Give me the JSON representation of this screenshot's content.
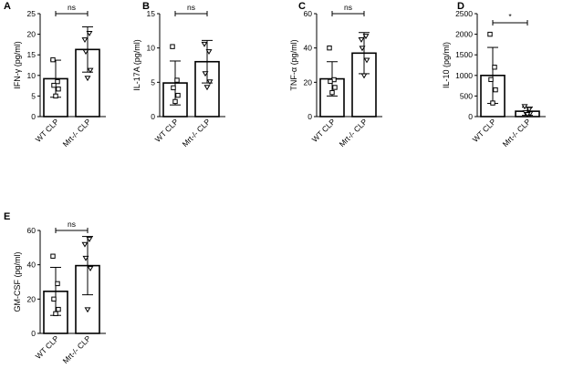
{
  "chart_data": [
    {
      "type": "bar",
      "panel": "A",
      "ylabel": "IFN-γ (pg/ml)",
      "ylim": [
        0,
        25
      ],
      "yticks": [
        0,
        5,
        10,
        15,
        20,
        25
      ],
      "categories": [
        "WT CLP",
        "Mrt-/- CLP"
      ],
      "values": [
        9.2,
        16.3
      ],
      "error": [
        4.5,
        5.5
      ],
      "points": [
        [
          13.8,
          8.5,
          7.6,
          6.7,
          5.0
        ],
        [
          18.7,
          20.3,
          15.8,
          11.3,
          9.4
        ]
      ],
      "significance": "ns"
    },
    {
      "type": "bar",
      "panel": "B",
      "ylabel": "IL-17A (pg/ml)",
      "ylim": [
        0,
        15
      ],
      "yticks": [
        0,
        5,
        10,
        15
      ],
      "categories": [
        "WT CLP",
        "Mrt-/- CLP"
      ],
      "values": [
        4.9,
        8.0
      ],
      "error": [
        3.2,
        3.1
      ],
      "points": [
        [
          10.2,
          5.3,
          4.2,
          3.1,
          2.2
        ],
        [
          10.6,
          9.5,
          6.3,
          5.1,
          4.3
        ]
      ],
      "significance": "ns"
    },
    {
      "type": "bar",
      "panel": "C",
      "ylabel": "TNF-α (pg/ml)",
      "ylim": [
        0,
        60
      ],
      "yticks": [
        0,
        20,
        40,
        60
      ],
      "categories": [
        "WT CLP",
        "Mrt-/- CLP"
      ],
      "values": [
        22.0,
        37.0
      ],
      "error": [
        10.0,
        12.0
      ],
      "points": [
        [
          40.0,
          21.5,
          20.5,
          17.0,
          14.0
        ],
        [
          45.0,
          47.0,
          40.0,
          33.0,
          24.0
        ]
      ],
      "significance": "ns"
    },
    {
      "type": "bar",
      "panel": "D",
      "ylabel": "IL-10 (pg/ml)",
      "ylim": [
        0,
        2500
      ],
      "yticks": [
        0,
        500,
        1000,
        1500,
        2000,
        2500
      ],
      "categories": [
        "WT CLP",
        "Mrt-/- CLP"
      ],
      "values": [
        1000,
        130
      ],
      "error": [
        680,
        100
      ],
      "points": [
        [
          2000,
          1200,
          900,
          650,
          330
        ],
        [
          250,
          180,
          100,
          80,
          60
        ]
      ],
      "significance": "*"
    },
    {
      "type": "bar",
      "panel": "E",
      "ylabel": "GM-CSF (pg/ml)",
      "ylim": [
        0,
        60
      ],
      "yticks": [
        0,
        20,
        40,
        60
      ],
      "categories": [
        "WT CLP",
        "Mrt-/- CLP"
      ],
      "values": [
        24.5,
        39.5
      ],
      "error": [
        14.0,
        17.0
      ],
      "points": [
        [
          45.0,
          29.0,
          20.0,
          14.0,
          11.5
        ],
        [
          52.0,
          55.0,
          44.0,
          38.0,
          14.0
        ]
      ],
      "significance": "ns"
    }
  ]
}
